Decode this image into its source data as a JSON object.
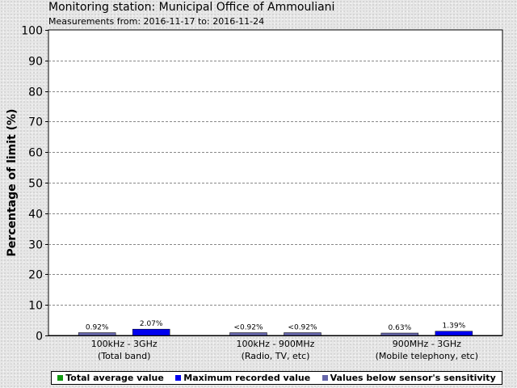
{
  "title": "Monitoring station: Municipal Office of Ammouliani",
  "subtitle": "Measurements from: 2016-11-17 to: 2016-11-24",
  "chart_data": {
    "type": "bar",
    "ylabel": "Percentage of limit (%)",
    "ylim": [
      0,
      100
    ],
    "yticks": [
      "0",
      "10",
      "20",
      "30",
      "40",
      "50",
      "60",
      "70",
      "80",
      "90",
      "100"
    ],
    "grid": true,
    "categories": [
      {
        "line1": "100kHz - 3GHz",
        "line2": "(Total band)"
      },
      {
        "line1": "100kHz - 900MHz",
        "line2": "(Radio, TV, etc)"
      },
      {
        "line1": "900MHz - 3GHz",
        "line2": "(Mobile telephony, etc)"
      }
    ],
    "bars": [
      {
        "category": 0,
        "slot": 0,
        "value": 0.92,
        "label": "0.92%",
        "kind": "below"
      },
      {
        "category": 0,
        "slot": 1,
        "value": 2.07,
        "label": "2.07%",
        "kind": "max"
      },
      {
        "category": 1,
        "slot": 0,
        "value": 0.92,
        "label": "<0.92%",
        "kind": "below"
      },
      {
        "category": 1,
        "slot": 1,
        "value": 0.92,
        "label": "<0.92%",
        "kind": "below"
      },
      {
        "category": 2,
        "slot": 0,
        "value": 0.63,
        "label": "0.63%",
        "kind": "below"
      },
      {
        "category": 2,
        "slot": 1,
        "value": 1.39,
        "label": "1.39%",
        "kind": "max"
      }
    ],
    "colors": {
      "average": "#119911",
      "max": "#0000ee",
      "below": "#6666aa"
    },
    "legend": [
      {
        "key": "average",
        "label": "Total average value"
      },
      {
        "key": "max",
        "label": "Maximum recorded value"
      },
      {
        "key": "below",
        "label": "Values below sensor's sensitivity"
      }
    ],
    "legend_position": "bottom"
  }
}
